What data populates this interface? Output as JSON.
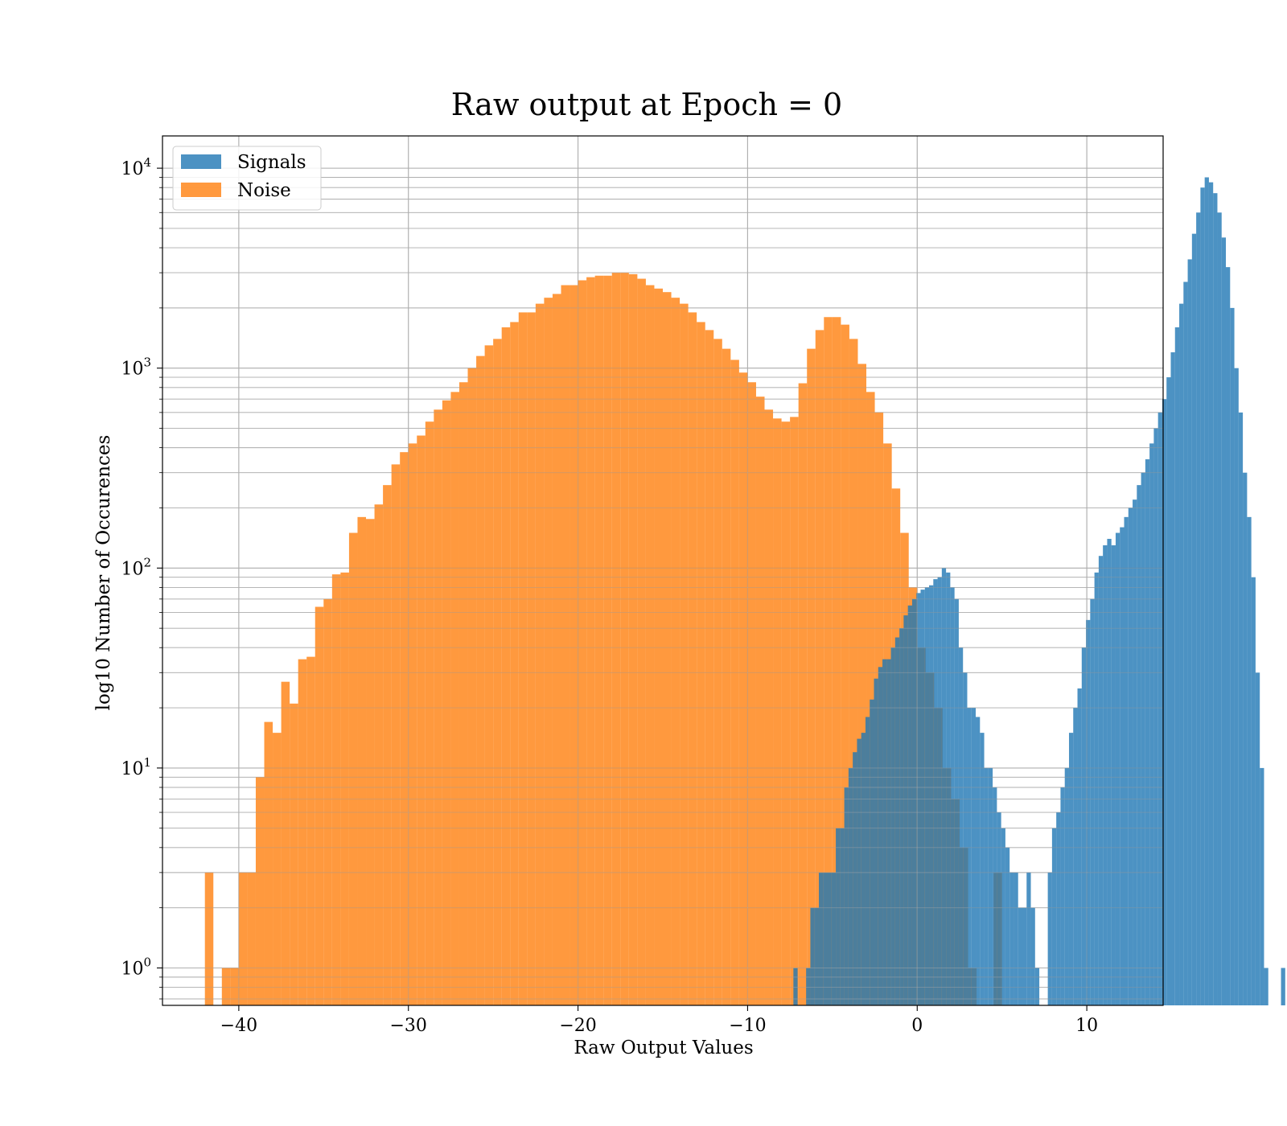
{
  "chart_data": {
    "type": "bar",
    "title": "Raw output at Epoch = 0",
    "xlabel": "Raw Output Values",
    "ylabel": "log10 Number of Occurences",
    "xlim": [
      -44.5,
      14.5
    ],
    "ylim": [
      0.65,
      14500
    ],
    "yscale": "log",
    "grid": true,
    "legend_position": "upper-left",
    "x_ticks": [
      {
        "value": -40,
        "label": "−40"
      },
      {
        "value": -30,
        "label": "−30"
      },
      {
        "value": -20,
        "label": "−20"
      },
      {
        "value": -10,
        "label": "−10"
      },
      {
        "value": 0,
        "label": "0"
      },
      {
        "value": 10,
        "label": "10"
      }
    ],
    "y_ticks": [
      {
        "value": 1,
        "base": "10",
        "exp": "0"
      },
      {
        "value": 10,
        "base": "10",
        "exp": "1"
      },
      {
        "value": 100,
        "base": "10",
        "exp": "2"
      },
      {
        "value": 1000,
        "base": "10",
        "exp": "3"
      },
      {
        "value": 10000,
        "base": "10",
        "exp": "4"
      }
    ],
    "series": [
      {
        "name": "Noise",
        "color": "#ff7f0e",
        "opacity": 0.8,
        "bin_start": -42.0,
        "bin_width": 0.5,
        "values": [
          3,
          0,
          1,
          1,
          3,
          3,
          9,
          17,
          15,
          27,
          21,
          35,
          36,
          64,
          70,
          93,
          95,
          150,
          180,
          176,
          208,
          260,
          330,
          380,
          420,
          460,
          540,
          620,
          690,
          760,
          850,
          1000,
          1150,
          1300,
          1400,
          1600,
          1700,
          1900,
          1900,
          2100,
          2250,
          2350,
          2600,
          2600,
          2750,
          2850,
          2900,
          2900,
          3000,
          3000,
          2950,
          2800,
          2600,
          2500,
          2400,
          2250,
          2100,
          1900,
          1700,
          1550,
          1400,
          1250,
          1100,
          950,
          850,
          720,
          620,
          560,
          540,
          570,
          840,
          1250,
          1550,
          1800,
          1800,
          1650,
          1400,
          1050,
          760,
          600,
          420,
          250,
          150,
          80,
          40,
          30,
          20,
          10,
          7,
          4,
          1,
          0,
          0,
          3,
          0
        ]
      },
      {
        "name": "Signals",
        "color": "#1f77b4",
        "opacity": 0.8,
        "bin_start": -7.3,
        "bin_width": 0.25,
        "values": [
          1,
          0,
          0,
          1,
          2,
          2,
          3,
          3,
          3,
          3,
          5,
          5,
          8,
          10,
          12,
          14,
          15,
          18,
          22,
          28,
          32,
          35,
          35,
          40,
          45,
          50,
          58,
          65,
          70,
          75,
          78,
          80,
          82,
          88,
          90,
          100,
          95,
          80,
          70,
          40,
          30,
          20,
          20,
          18,
          15,
          10,
          10,
          8,
          6,
          5,
          4,
          3,
          3,
          2,
          2,
          3,
          2,
          1,
          0,
          0,
          3,
          5,
          6,
          8,
          10,
          15,
          20,
          25,
          40,
          55,
          70,
          95,
          115,
          130,
          140,
          130,
          150,
          160,
          180,
          200,
          220,
          260,
          300,
          350,
          420,
          500,
          600,
          700,
          900,
          1200,
          1600,
          2100,
          2700,
          3500,
          4700,
          6000,
          8000,
          9000,
          8500,
          7500,
          6000,
          4500,
          3200,
          2000,
          1000,
          600,
          300,
          180,
          90,
          30,
          10,
          1,
          0,
          0,
          0,
          1
        ]
      }
    ]
  }
}
